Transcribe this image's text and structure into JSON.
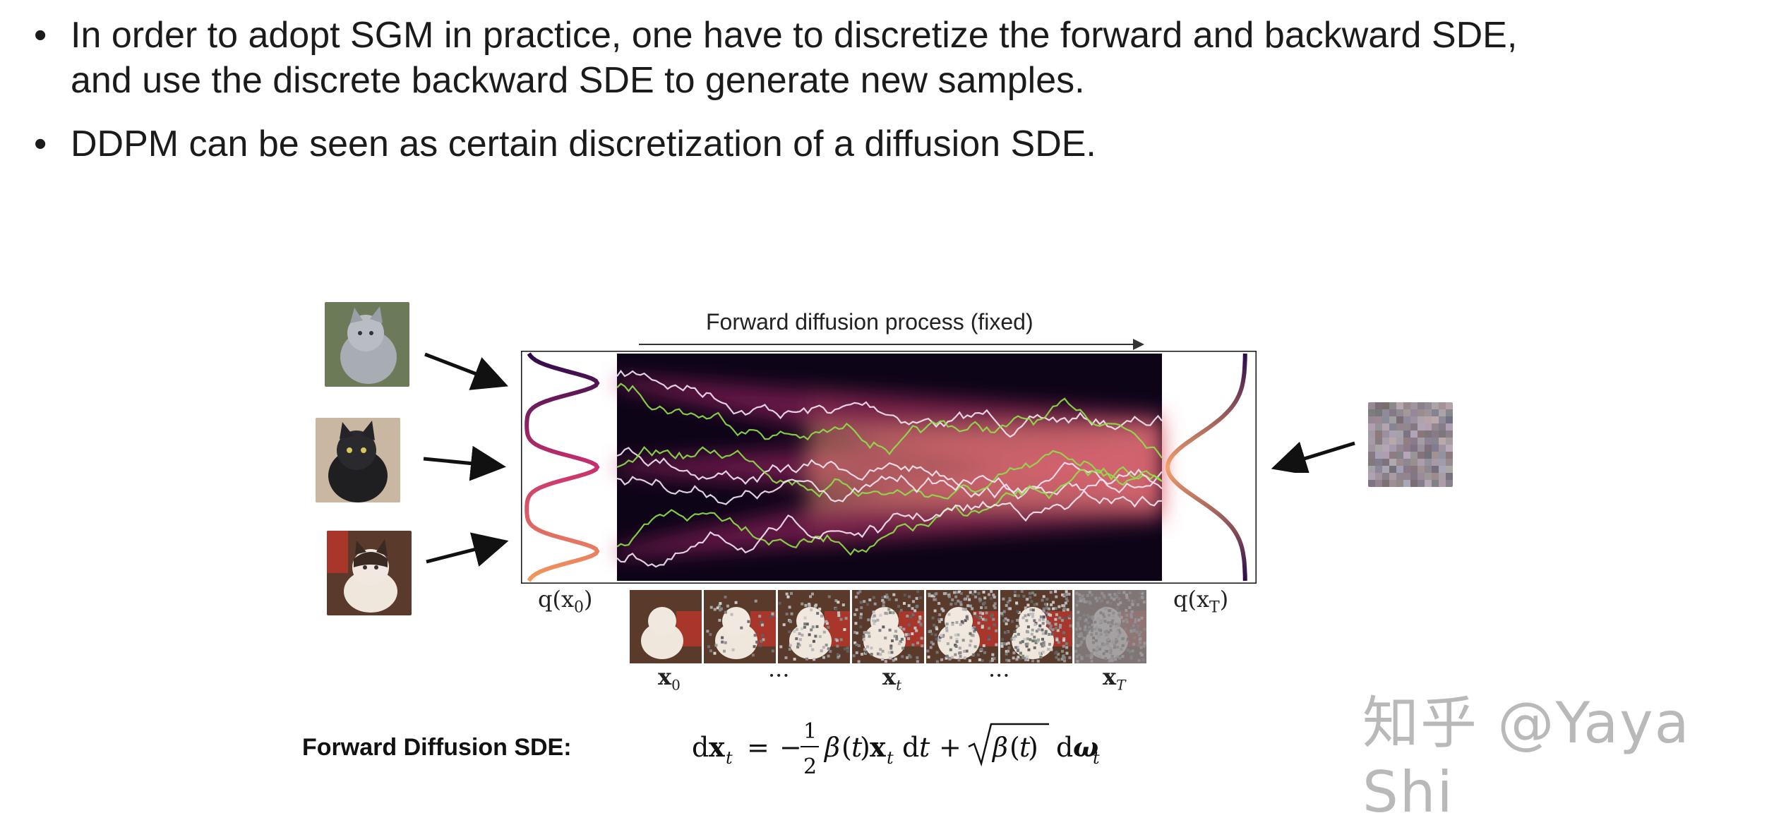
{
  "bullets": [
    {
      "line1": "In order to adopt SGM in practice, one have to discretize the forward and backward SDE,",
      "line2": "and use the discrete backward SDE to generate new samples."
    },
    {
      "line1": "DDPM can be seen as certain discretization of a diffusion SDE.",
      "line2": ""
    }
  ],
  "figure": {
    "title": "Forward diffusion process (fixed)",
    "q_left": "q(x",
    "q_left_sub": "0",
    "q_right": "q(x",
    "q_right_sub": "T",
    "x0": "x",
    "x0_sub": "0",
    "dots1": "···",
    "xt": "x",
    "xt_sub": "t",
    "dots2": "···",
    "xT": "x",
    "xT_sub": "T"
  },
  "equation": {
    "label": "Forward Diffusion SDE:"
  },
  "watermark": "知乎 @Yaya Shi",
  "colors": {
    "text": "#1b1b1b",
    "heat_dark": "#100620",
    "heat_mid": "#b0286e",
    "heat_bright": "#f6a07a",
    "paths_white": "#f4e6f4",
    "paths_green": "#8fe04a"
  }
}
